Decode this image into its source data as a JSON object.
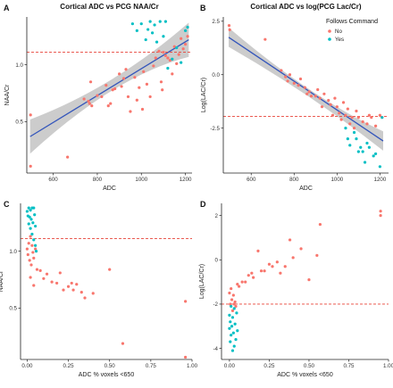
{
  "figure": {
    "legend_title": "Follows Command",
    "legend_no": "No",
    "legend_yes": "Yes",
    "colors": {
      "No": "#F8766D",
      "Yes": "#00BFC4",
      "fit": "#3355BB",
      "band": "#BBBBBB",
      "refline": "#E8443A"
    }
  },
  "chart_data": [
    {
      "id": "A",
      "type": "scatter",
      "letter": "A",
      "title": "Cortical ADC vs PCG NAA/Cr",
      "xlabel": "ADC",
      "ylabel": "NAA/Cr",
      "xlim": [
        480,
        1230
      ],
      "ylim": [
        0.05,
        1.42
      ],
      "xticks": [
        600,
        800,
        1000,
        1200
      ],
      "yticks": [
        0.5,
        1.0
      ],
      "xticklabels": [
        "600",
        "800",
        "1000",
        "1200"
      ],
      "yticklabels": [
        "0.5",
        "1.0"
      ],
      "refline_y": 1.11,
      "fit": {
        "x": [
          495,
          1215
        ],
        "y": [
          0.37,
          1.22
        ],
        "band_lo": [
          0.22,
          1.07
        ],
        "band_hi": [
          0.52,
          1.37
        ],
        "band_mid_x": 880,
        "band_mid_hw": 0.05
      },
      "grid": false,
      "series": [
        {
          "name": "No",
          "points": [
            [
              497,
              0.56
            ],
            [
              497,
              0.11
            ],
            [
              665,
              0.19
            ],
            [
              740,
              0.7
            ],
            [
              760,
              0.68
            ],
            [
              765,
              0.66
            ],
            [
              770,
              0.85
            ],
            [
              775,
              0.64
            ],
            [
              800,
              0.73
            ],
            [
              820,
              0.72
            ],
            [
              840,
              0.82
            ],
            [
              850,
              0.64
            ],
            [
              860,
              0.66
            ],
            [
              870,
              0.78
            ],
            [
              880,
              0.79
            ],
            [
              900,
              0.92
            ],
            [
              910,
              0.81
            ],
            [
              920,
              0.88
            ],
            [
              930,
              0.96
            ],
            [
              940,
              0.72
            ],
            [
              950,
              0.59
            ],
            [
              970,
              0.89
            ],
            [
              980,
              0.69
            ],
            [
              990,
              0.8
            ],
            [
              1005,
              0.61
            ],
            [
              1010,
              0.94
            ],
            [
              1025,
              0.83
            ],
            [
              1040,
              0.72
            ],
            [
              1055,
              0.99
            ],
            [
              1065,
              1.06
            ],
            [
              1080,
              1.12
            ],
            [
              1090,
              0.85
            ],
            [
              1095,
              0.78
            ],
            [
              1100,
              1.11
            ],
            [
              1110,
              1.08
            ],
            [
              1120,
              1.06
            ],
            [
              1130,
              1.04
            ],
            [
              1140,
              0.92
            ],
            [
              1150,
              1.16
            ],
            [
              1160,
              1.01
            ],
            [
              1170,
              1.09
            ],
            [
              1180,
              1.23
            ],
            [
              1190,
              1.14
            ],
            [
              1200,
              1.18
            ],
            [
              1210,
              1.25
            ]
          ]
        },
        {
          "name": "Yes",
          "points": [
            [
              960,
              1.36
            ],
            [
              980,
              1.3
            ],
            [
              1000,
              1.36
            ],
            [
              1020,
              1.22
            ],
            [
              1030,
              1.31
            ],
            [
              1040,
              1.38
            ],
            [
              1050,
              1.28
            ],
            [
              1060,
              1.35
            ],
            [
              1070,
              1.2
            ],
            [
              1085,
              1.38
            ],
            [
              1100,
              1.25
            ],
            [
              1110,
              1.38
            ],
            [
              1120,
              0.97
            ],
            [
              1140,
              1.05
            ],
            [
              1160,
              1.15
            ],
            [
              1180,
              1.02
            ],
            [
              1200,
              1.3
            ],
            [
              1210,
              1.33
            ]
          ]
        }
      ]
    },
    {
      "id": "B",
      "type": "scatter",
      "letter": "B",
      "title": "Cortical ADC vs log(PCG Lac/Cr)",
      "xlabel": "ADC",
      "ylabel": "Log(LAC/Cr)",
      "xlim": [
        470,
        1240
      ],
      "ylim": [
        -4.6,
        2.7
      ],
      "xticks": [
        600,
        800,
        1000,
        1200
      ],
      "yticks": [
        -2.5,
        0.0,
        2.5
      ],
      "xticklabels": [
        "600",
        "800",
        "1000",
        "1200"
      ],
      "yticklabels": [
        "-2.5",
        "0.0",
        "2.5"
      ],
      "refline_y": -1.95,
      "fit": {
        "x": [
          495,
          1215
        ],
        "y": [
          1.75,
          -3.1
        ],
        "band_lo": [
          1.3,
          -3.55
        ],
        "band_hi": [
          2.2,
          -2.65
        ],
        "band_mid_x": 880,
        "band_mid_hw": 0.18
      },
      "grid": false,
      "series": [
        {
          "name": "No",
          "points": [
            [
              497,
              2.3
            ],
            [
              500,
              2.1
            ],
            [
              665,
              1.65
            ],
            [
              740,
              0.2
            ],
            [
              760,
              -0.1
            ],
            [
              770,
              -0.3
            ],
            [
              780,
              0.0
            ],
            [
              800,
              -0.4
            ],
            [
              820,
              -0.5
            ],
            [
              830,
              -0.2
            ],
            [
              850,
              -0.6
            ],
            [
              860,
              -0.9
            ],
            [
              870,
              -0.8
            ],
            [
              880,
              -1.0
            ],
            [
              900,
              -1.0
            ],
            [
              910,
              -0.7
            ],
            [
              920,
              -1.1
            ],
            [
              930,
              -1.5
            ],
            [
              940,
              -0.9
            ],
            [
              960,
              -1.2
            ],
            [
              970,
              -1.4
            ],
            [
              980,
              -1.9
            ],
            [
              990,
              -1.1
            ],
            [
              1000,
              -1.5
            ],
            [
              1010,
              -1.8
            ],
            [
              1020,
              -2.1
            ],
            [
              1030,
              -1.3
            ],
            [
              1040,
              -1.9
            ],
            [
              1050,
              -1.6
            ],
            [
              1060,
              -2.3
            ],
            [
              1070,
              -2.0
            ],
            [
              1080,
              -2.5
            ],
            [
              1090,
              -1.7
            ],
            [
              1100,
              -2.0
            ],
            [
              1120,
              -2.2
            ],
            [
              1140,
              -2.3
            ],
            [
              1150,
              -1.9
            ],
            [
              1160,
              -2.0
            ],
            [
              1180,
              -2.4
            ],
            [
              1200,
              -1.9
            ],
            [
              1210,
              -2.0
            ]
          ]
        },
        {
          "name": "Yes",
          "points": [
            [
              1040,
              -2.5
            ],
            [
              1050,
              -3.0
            ],
            [
              1060,
              -3.3
            ],
            [
              1080,
              -2.7
            ],
            [
              1090,
              -3.0
            ],
            [
              1100,
              -3.6
            ],
            [
              1110,
              -3.4
            ],
            [
              1120,
              -3.6
            ],
            [
              1130,
              -4.1
            ],
            [
              1140,
              -3.2
            ],
            [
              1150,
              -3.4
            ],
            [
              1170,
              -3.8
            ],
            [
              1180,
              -3.7
            ],
            [
              1200,
              -4.3
            ],
            [
              1210,
              -2.0
            ]
          ]
        }
      ]
    },
    {
      "id": "C",
      "type": "scatter",
      "letter": "C",
      "title": "",
      "xlabel": "ADC % voxels <650",
      "ylabel": "NAA/Cr",
      "xlim": [
        -0.04,
        1.0
      ],
      "ylim": [
        0.05,
        1.42
      ],
      "xticks": [
        0.0,
        0.25,
        0.5,
        0.75,
        1.0
      ],
      "yticks": [
        0.5,
        1.0
      ],
      "xticklabels": [
        "0.00",
        "0.25",
        "0.50",
        "0.75",
        "1.00"
      ],
      "yticklabels": [
        "0.5",
        "1.0"
      ],
      "refline_y": 1.11,
      "grid": false,
      "series": [
        {
          "name": "No",
          "points": [
            [
              0.0,
              1.02
            ],
            [
              0.005,
              0.97
            ],
            [
              0.01,
              1.07
            ],
            [
              0.015,
              0.92
            ],
            [
              0.02,
              1.13
            ],
            [
              0.025,
              0.88
            ],
            [
              0.03,
              1.05
            ],
            [
              0.035,
              0.99
            ],
            [
              0.04,
              0.94
            ],
            [
              0.05,
              1.02
            ],
            [
              0.06,
              0.84
            ],
            [
              0.08,
              0.83
            ],
            [
              0.1,
              0.76
            ],
            [
              0.12,
              0.8
            ],
            [
              0.15,
              0.73
            ],
            [
              0.18,
              0.72
            ],
            [
              0.2,
              0.81
            ],
            [
              0.22,
              0.66
            ],
            [
              0.25,
              0.69
            ],
            [
              0.27,
              0.72
            ],
            [
              0.28,
              0.66
            ],
            [
              0.3,
              0.71
            ],
            [
              0.33,
              0.64
            ],
            [
              0.35,
              0.59
            ],
            [
              0.4,
              0.63
            ],
            [
              0.5,
              0.84
            ],
            [
              0.58,
              0.19
            ],
            [
              0.02,
              0.77
            ],
            [
              0.04,
              0.7
            ],
            [
              0.96,
              0.56
            ],
            [
              0.96,
              0.07
            ]
          ]
        },
        {
          "name": "Yes",
          "points": [
            [
              0.0,
              1.35
            ],
            [
              0.005,
              1.31
            ],
            [
              0.01,
              1.38
            ],
            [
              0.01,
              1.24
            ],
            [
              0.015,
              1.3
            ],
            [
              0.02,
              1.36
            ],
            [
              0.02,
              1.2
            ],
            [
              0.025,
              1.28
            ],
            [
              0.03,
              1.38
            ],
            [
              0.03,
              1.15
            ],
            [
              0.035,
              1.25
            ],
            [
              0.04,
              1.38
            ],
            [
              0.04,
              1.1
            ],
            [
              0.045,
              1.32
            ],
            [
              0.05,
              1.05
            ],
            [
              0.05,
              1.22
            ],
            [
              0.055,
              1.0
            ]
          ]
        }
      ]
    },
    {
      "id": "D",
      "type": "scatter",
      "letter": "D",
      "title": "",
      "xlabel": "ADC % voxels <650",
      "ylabel": "Log(LAC/Cr)",
      "xlim": [
        -0.05,
        1.0
      ],
      "ylim": [
        -4.5,
        2.55
      ],
      "xticks": [
        0.0,
        0.25,
        0.5,
        0.75,
        1.0
      ],
      "yticks": [
        -4,
        -2,
        0,
        2
      ],
      "xticklabels": [
        "0.00",
        "0.25",
        "0.50",
        "0.75",
        "1.00"
      ],
      "yticklabels": [
        "-4",
        "-2",
        "0",
        "2"
      ],
      "refline_y": -2.0,
      "grid": false,
      "series": [
        {
          "name": "No",
          "points": [
            [
              0.0,
              -1.5
            ],
            [
              0.005,
              -2.0
            ],
            [
              0.01,
              -1.3
            ],
            [
              0.015,
              -1.8
            ],
            [
              0.02,
              -2.3
            ],
            [
              0.025,
              -1.6
            ],
            [
              0.03,
              -2.0
            ],
            [
              0.035,
              -1.9
            ],
            [
              0.04,
              -2.1
            ],
            [
              0.05,
              -1.1
            ],
            [
              0.06,
              -1.2
            ],
            [
              0.08,
              -1.0
            ],
            [
              0.1,
              -1.0
            ],
            [
              0.12,
              -0.7
            ],
            [
              0.14,
              -0.6
            ],
            [
              0.15,
              -0.8
            ],
            [
              0.18,
              0.4
            ],
            [
              0.2,
              -0.5
            ],
            [
              0.22,
              -0.5
            ],
            [
              0.25,
              -0.2
            ],
            [
              0.27,
              -0.3
            ],
            [
              0.3,
              -0.1
            ],
            [
              0.32,
              -0.6
            ],
            [
              0.35,
              -0.3
            ],
            [
              0.38,
              0.9
            ],
            [
              0.4,
              0.1
            ],
            [
              0.45,
              0.5
            ],
            [
              0.5,
              -0.9
            ],
            [
              0.55,
              0.2
            ],
            [
              0.57,
              1.6
            ],
            [
              0.95,
              2.2
            ],
            [
              0.95,
              2.0
            ]
          ]
        },
        {
          "name": "Yes",
          "points": [
            [
              0.0,
              -2.5
            ],
            [
              0.0,
              -3.1
            ],
            [
              0.005,
              -2.8
            ],
            [
              0.005,
              -3.7
            ],
            [
              0.01,
              -2.1
            ],
            [
              0.01,
              -3.4
            ],
            [
              0.015,
              -3.0
            ],
            [
              0.02,
              -2.6
            ],
            [
              0.02,
              -4.1
            ],
            [
              0.025,
              -3.3
            ],
            [
              0.03,
              -2.2
            ],
            [
              0.03,
              -3.9
            ],
            [
              0.035,
              -2.9
            ],
            [
              0.04,
              -3.6
            ],
            [
              0.045,
              -2.4
            ],
            [
              0.05,
              -3.2
            ]
          ]
        }
      ]
    }
  ]
}
